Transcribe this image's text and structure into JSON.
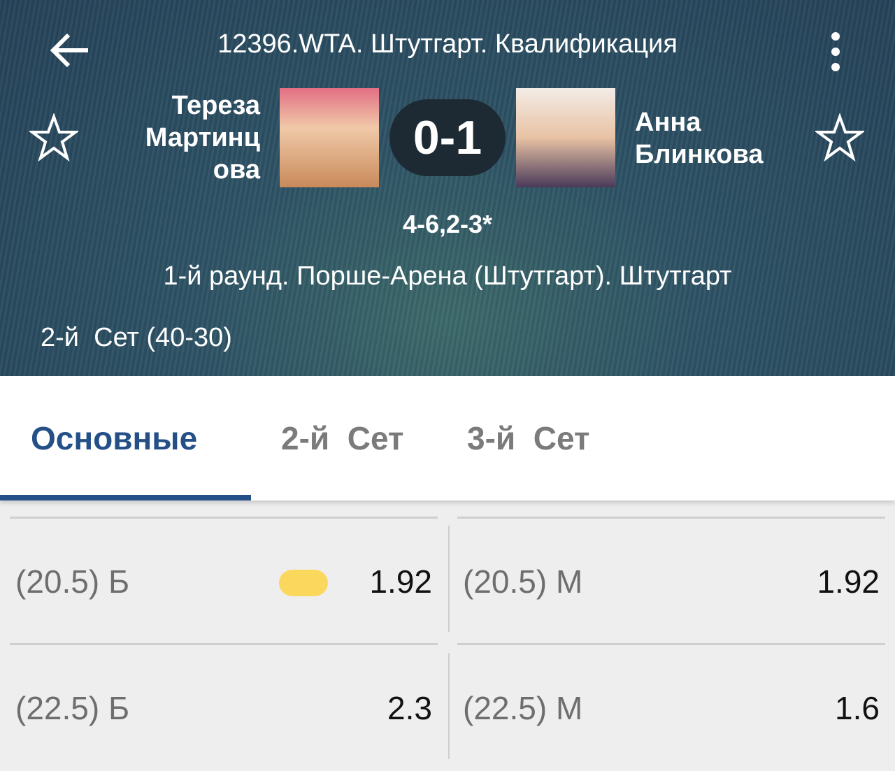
{
  "header": {
    "title": "12396.WTA. Штутгарт. Квалификация",
    "player1": [
      "Тереза",
      "Мартинц",
      "ова"
    ],
    "player2": [
      "Анна",
      "Блинкова"
    ],
    "score": "0-1",
    "sets": "4-6,2-3*",
    "venue": "1-й раунд. Порше-Арена (Штутгарт). Штутгарт",
    "current": "2-й  Сет (40-30)"
  },
  "tabs": [
    {
      "label": "Основные",
      "active": true
    },
    {
      "label": "2-й  Сет"
    },
    {
      "label": "3-й  Сет"
    }
  ],
  "rows": [
    {
      "left": {
        "label": "(20.5) Б",
        "odds": "1.92",
        "highlight": true
      },
      "right": {
        "label": "(20.5) М",
        "odds": "1.92"
      }
    },
    {
      "left": {
        "label": "(22.5) Б",
        "odds": "2.3"
      },
      "right": {
        "label": "(22.5) М",
        "odds": "1.6"
      }
    }
  ],
  "colors": {
    "accent": "#245087",
    "highlight": "#fbd85d"
  }
}
